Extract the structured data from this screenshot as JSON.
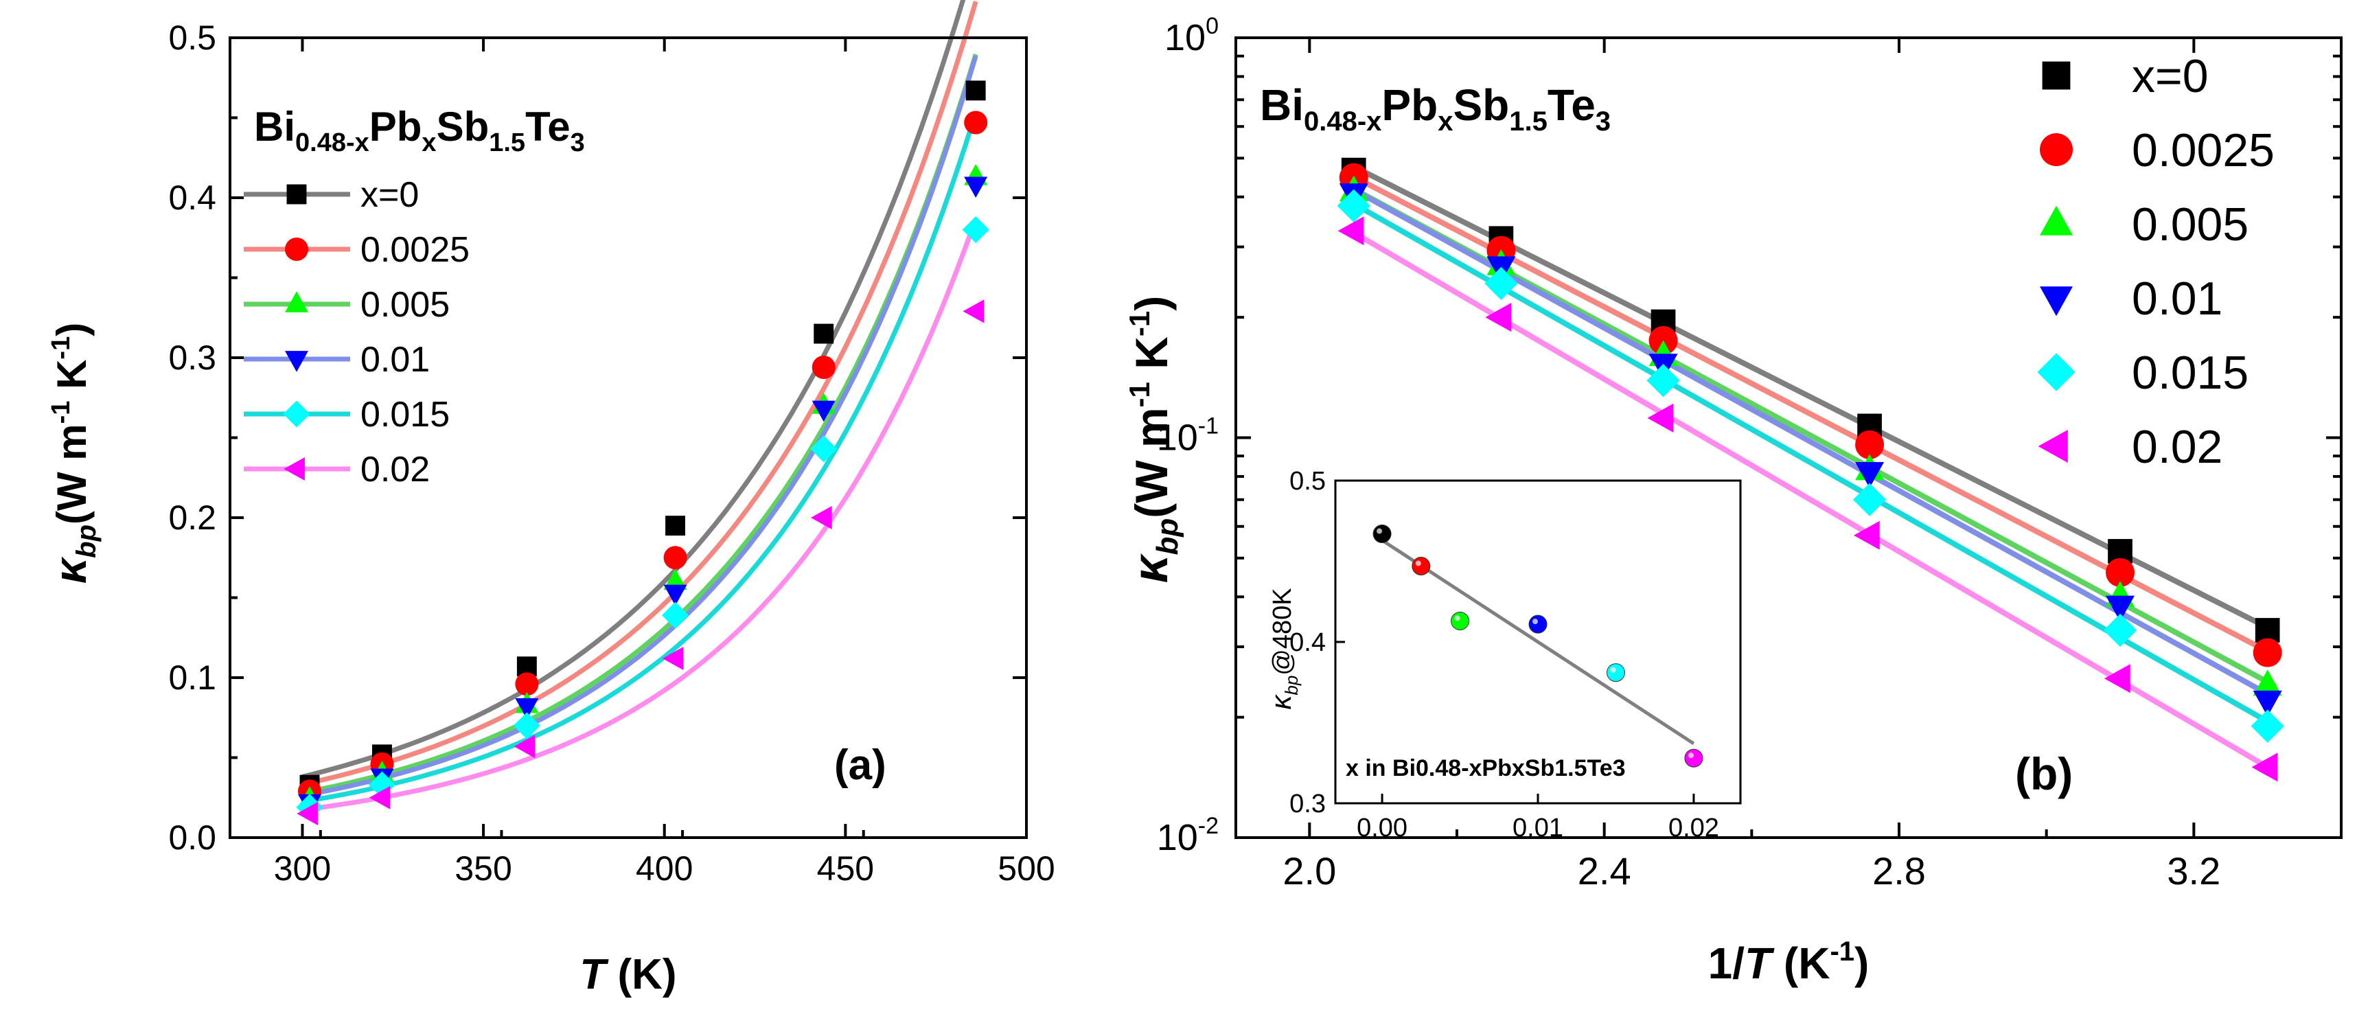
{
  "chart_data": [
    {
      "type": "scatter",
      "panel_label": "(a)",
      "title": "Bi0.48-xPbxSb1.5Te3",
      "compound": {
        "base": [
          "Bi",
          "Pb",
          "Sb",
          "Te"
        ],
        "subs": [
          "0.48-x",
          "x",
          "1.5",
          "3"
        ]
      },
      "xlabel": {
        "symbol": "T",
        "unit": " (K)"
      },
      "ylabel": {
        "symbol": "κ",
        "sub": "bp",
        "unit": "(W m",
        "sup1": "-1",
        "unit2": " K",
        "sup2": "-1",
        "close": ")"
      },
      "xlim": [
        280,
        500
      ],
      "ylim": [
        0.0,
        0.5
      ],
      "xticks": [
        "300",
        "350",
        "400",
        "450",
        "500"
      ],
      "yticks": [
        "0.0",
        "0.1",
        "0.2",
        "0.3",
        "0.4",
        "0.5"
      ],
      "x": [
        302,
        322,
        362,
        403,
        444,
        486
      ],
      "series": [
        {
          "name": "x=0",
          "marker": "square",
          "color": "#000000",
          "line": "#7f7f7f",
          "values": [
            0.033,
            0.052,
            0.107,
            0.195,
            0.315,
            0.467
          ]
        },
        {
          "name": "0.0025",
          "marker": "circle",
          "color": "#ff0000",
          "line": "#f4877f",
          "values": [
            0.029,
            0.046,
            0.096,
            0.175,
            0.294,
            0.447
          ]
        },
        {
          "name": "0.005",
          "marker": "triangle-up",
          "color": "#00ff00",
          "line": "#5fd35f",
          "values": [
            0.024,
            0.04,
            0.083,
            0.16,
            0.27,
            0.413
          ]
        },
        {
          "name": "0.01",
          "marker": "triangle-down",
          "color": "#0000ff",
          "line": "#7f8fe8",
          "values": [
            0.022,
            0.038,
            0.082,
            0.153,
            0.268,
            0.408
          ]
        },
        {
          "name": "0.015",
          "marker": "diamond",
          "color": "#00ffff",
          "line": "#1ad9d9",
          "values": [
            0.019,
            0.033,
            0.07,
            0.139,
            0.243,
            0.38
          ]
        },
        {
          "name": "0.02",
          "marker": "triangle-left",
          "color": "#ff00ff",
          "line": "#ff8bef",
          "values": [
            0.015,
            0.025,
            0.057,
            0.112,
            0.2,
            0.329
          ]
        }
      ]
    },
    {
      "type": "scatter",
      "panel_label": "(b)",
      "title": "Bi0.48-xPbxSb1.5Te3",
      "xlabel": {
        "pre": "1/",
        "symbol": "T",
        "unit": " (K",
        "sup": "-1",
        "close": ")"
      },
      "yscale": "log",
      "xlim": [
        1.9,
        3.4
      ],
      "ylim": [
        0.01,
        1.0
      ],
      "xticks": [
        "2.0",
        "2.4",
        "2.8",
        "3.2"
      ],
      "yticks": [
        {
          "value": 0.01,
          "base": "10",
          "exp": "-2"
        },
        {
          "value": 0.1,
          "base": "10",
          "exp": "-1"
        },
        {
          "value": 1.0,
          "base": "10",
          "exp": "0"
        }
      ],
      "x": [
        2.06,
        2.26,
        2.48,
        2.76,
        3.1,
        3.3
      ],
      "series": [
        {
          "name": "x=0",
          "values": [
            0.467,
            0.315,
            0.195,
            0.107,
            0.052,
            0.033
          ]
        },
        {
          "name": "0.0025",
          "values": [
            0.447,
            0.294,
            0.175,
            0.096,
            0.046,
            0.029
          ]
        },
        {
          "name": "0.005",
          "values": [
            0.413,
            0.27,
            0.16,
            0.083,
            0.04,
            0.024
          ]
        },
        {
          "name": "0.01",
          "values": [
            0.408,
            0.268,
            0.153,
            0.082,
            0.038,
            0.022
          ]
        },
        {
          "name": "0.015",
          "values": [
            0.38,
            0.243,
            0.139,
            0.07,
            0.033,
            0.019
          ]
        },
        {
          "name": "0.02",
          "values": [
            0.329,
            0.2,
            0.112,
            0.057,
            0.025,
            0.015
          ]
        }
      ],
      "inset": {
        "ylabel": {
          "symbol": "κ",
          "sub": "bp",
          "text": "@480K"
        },
        "xlabel": "x in Bi0.48-xPbxSb1.5Te3",
        "xlim": [
          -0.003,
          0.023
        ],
        "ylim": [
          0.3,
          0.5
        ],
        "xticks": [
          "0.00",
          "0.01",
          "0.02"
        ],
        "yticks": [
          "0.3",
          "0.4",
          "0.5"
        ],
        "points": [
          {
            "x": 0.0,
            "y": 0.467,
            "color": "#000000"
          },
          {
            "x": 0.0025,
            "y": 0.447,
            "color": "#ff0000"
          },
          {
            "x": 0.005,
            "y": 0.413,
            "color": "#00ff00"
          },
          {
            "x": 0.01,
            "y": 0.411,
            "color": "#0000ff"
          },
          {
            "x": 0.015,
            "y": 0.381,
            "color": "#00ffff"
          },
          {
            "x": 0.02,
            "y": 0.328,
            "color": "#ff00ff"
          }
        ],
        "fit": {
          "x": [
            0.0,
            0.02
          ],
          "y": [
            0.463,
            0.337
          ]
        }
      }
    }
  ]
}
